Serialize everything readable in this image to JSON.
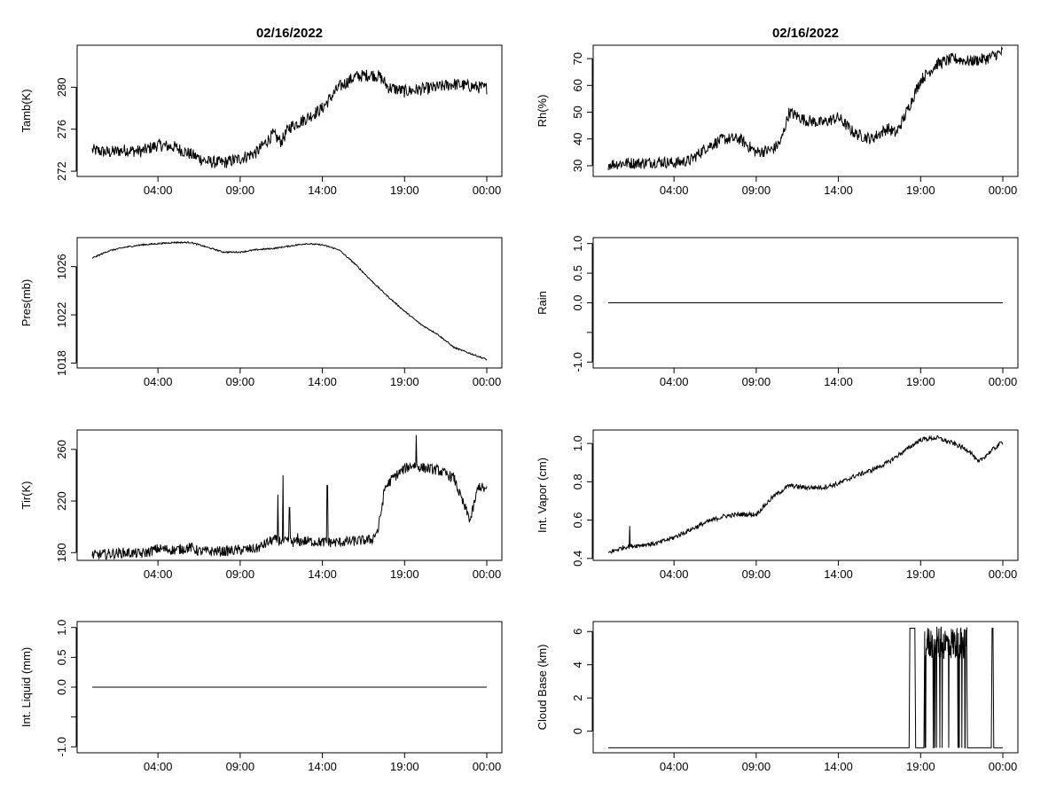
{
  "colors": {
    "background": "#ffffff",
    "line": "#000000",
    "frame": "#000000"
  },
  "chart_data": [
    {
      "id": "tamb",
      "type": "line",
      "title": "02/16/2022",
      "xlabel": "",
      "ylabel": "Tamb(K)",
      "xlim": [
        0,
        24
      ],
      "ylim": [
        271.5,
        284.0
      ],
      "xticks": [
        4,
        9,
        14,
        19,
        24
      ],
      "xtick_labels": [
        "04:00",
        "09:00",
        "14:00",
        "19:00",
        "00:00"
      ],
      "yticks": [
        272,
        276,
        280
      ],
      "ytick_labels": [
        "272",
        "276",
        "280"
      ],
      "grid": false,
      "x": [
        0,
        1,
        2,
        3,
        4,
        5,
        6,
        7,
        8,
        9,
        10,
        11,
        11.5,
        12,
        13,
        14,
        15,
        16,
        17,
        17.5,
        18,
        19,
        20,
        21,
        22,
        23,
        24
      ],
      "y": [
        274.0,
        273.8,
        274.0,
        273.9,
        274.5,
        274.3,
        273.6,
        272.9,
        272.8,
        273.2,
        273.8,
        275.5,
        274.8,
        276.2,
        277.0,
        278.0,
        280.0,
        281.0,
        281.2,
        281.0,
        280.0,
        279.6,
        279.8,
        280.0,
        280.3,
        280.1,
        279.9
      ],
      "noise": 0.6
    },
    {
      "id": "rh",
      "type": "line",
      "title": "02/16/2022",
      "xlabel": "",
      "ylabel": "Rh(%)",
      "xlim": [
        0,
        24
      ],
      "ylim": [
        26,
        75
      ],
      "xticks": [
        4,
        9,
        14,
        19,
        24
      ],
      "xtick_labels": [
        "04:00",
        "09:00",
        "14:00",
        "19:00",
        "00:00"
      ],
      "yticks": [
        30,
        40,
        50,
        60,
        70
      ],
      "ytick_labels": [
        "30",
        "40",
        "50",
        "60",
        "70"
      ],
      "grid": false,
      "x": [
        0,
        1,
        2,
        3,
        4,
        5,
        6,
        7,
        8,
        9,
        10,
        10.5,
        11,
        12,
        13,
        14,
        15,
        16,
        17,
        17.5,
        18,
        19,
        20,
        21,
        22,
        23,
        24
      ],
      "y": [
        30.5,
        31,
        31,
        31.5,
        31,
        32,
        37,
        40,
        40,
        35,
        36,
        39,
        50,
        47,
        46,
        48,
        42,
        40,
        44,
        42,
        48,
        62,
        68,
        70,
        69,
        70,
        72.5
      ],
      "noise": 2.2
    },
    {
      "id": "pres",
      "type": "line",
      "title": "",
      "xlabel": "",
      "ylabel": "Pres(mb)",
      "xlim": [
        0,
        24
      ],
      "ylim": [
        1017.6,
        1028.4
      ],
      "xticks": [
        4,
        9,
        14,
        19,
        24
      ],
      "xtick_labels": [
        "04:00",
        "09:00",
        "14:00",
        "19:00",
        "00:00"
      ],
      "yticks": [
        1018,
        1022,
        1026
      ],
      "ytick_labels": [
        "1018",
        "1022",
        "1026"
      ],
      "grid": false,
      "x": [
        0,
        1,
        2,
        3,
        4,
        5,
        6,
        7,
        8,
        9,
        10,
        11,
        12,
        13,
        14,
        15,
        16,
        17,
        18,
        19,
        20,
        21,
        22,
        23,
        24
      ],
      "y": [
        1026.7,
        1027.3,
        1027.6,
        1027.8,
        1027.9,
        1028.0,
        1028.0,
        1027.6,
        1027.2,
        1027.2,
        1027.4,
        1027.5,
        1027.7,
        1027.9,
        1027.8,
        1027.4,
        1026.2,
        1024.8,
        1023.5,
        1022.3,
        1021.2,
        1020.4,
        1019.3,
        1018.8,
        1018.3
      ],
      "noise": 0.06
    },
    {
      "id": "rain",
      "type": "line",
      "title": "",
      "xlabel": "",
      "ylabel": "Rain",
      "xlim": [
        0,
        24
      ],
      "ylim": [
        -1.1,
        1.1
      ],
      "xticks": [
        4,
        9,
        14,
        19,
        24
      ],
      "xtick_labels": [
        "04:00",
        "09:00",
        "14:00",
        "19:00",
        "00:00"
      ],
      "yticks": [
        -1.0,
        -0.5,
        0.0,
        0.5,
        1.0
      ],
      "ytick_labels": [
        "-1.0",
        "",
        "0.0",
        "0.5",
        "1.0"
      ],
      "grid": false,
      "x": [
        0,
        24
      ],
      "y": [
        0,
        0
      ],
      "noise": 0
    },
    {
      "id": "tir",
      "type": "line",
      "title": "",
      "xlabel": "",
      "ylabel": "Tir(K)",
      "xlim": [
        0,
        24
      ],
      "ylim": [
        174,
        275
      ],
      "xticks": [
        4,
        9,
        14,
        19,
        24
      ],
      "xtick_labels": [
        "04:00",
        "09:00",
        "14:00",
        "19:00",
        "00:00"
      ],
      "yticks": [
        180,
        220,
        260
      ],
      "ytick_labels": [
        "180",
        "220",
        "260"
      ],
      "grid": false,
      "x": [
        0,
        1,
        2,
        3,
        4,
        5,
        6,
        6.5,
        7,
        8,
        9,
        10,
        11,
        12,
        13,
        14,
        15,
        16,
        17,
        17.4,
        17.8,
        18.3,
        19,
        19.5,
        20,
        21,
        22,
        22.5,
        23,
        23.5,
        24
      ],
      "y": [
        178,
        179,
        180,
        179,
        183,
        182,
        184,
        181,
        181,
        181,
        182,
        183,
        190,
        188,
        189,
        188,
        188,
        189,
        190,
        198,
        230,
        238,
        245,
        248,
        246,
        244,
        238,
        220,
        205,
        232,
        228
      ],
      "noise": 4,
      "spikes": [
        [
          11.3,
          225
        ],
        [
          11.6,
          240
        ],
        [
          12,
          215
        ],
        [
          12.5,
          195
        ],
        [
          14.3,
          232
        ],
        [
          19.7,
          271
        ]
      ]
    },
    {
      "id": "vapor",
      "type": "line",
      "title": "",
      "xlabel": "",
      "ylabel": "Int. Vapor (cm)",
      "xlim": [
        0,
        24
      ],
      "ylim": [
        0.39,
        1.07
      ],
      "xticks": [
        4,
        9,
        14,
        19,
        24
      ],
      "xtick_labels": [
        "04:00",
        "09:00",
        "14:00",
        "19:00",
        "00:00"
      ],
      "yticks": [
        0.4,
        0.6,
        0.8,
        1.0
      ],
      "ytick_labels": [
        "0.4",
        "0.6",
        "0.8",
        "1.0"
      ],
      "grid": false,
      "x": [
        0,
        1,
        2,
        3,
        4,
        5,
        6,
        7,
        8,
        9,
        10,
        11,
        12,
        13,
        14,
        15,
        16,
        17,
        18,
        19,
        20,
        21,
        22,
        22.5,
        23,
        24
      ],
      "y": [
        0.43,
        0.46,
        0.47,
        0.48,
        0.51,
        0.55,
        0.59,
        0.62,
        0.63,
        0.63,
        0.72,
        0.78,
        0.77,
        0.77,
        0.79,
        0.83,
        0.86,
        0.9,
        0.96,
        1.02,
        1.03,
        1.0,
        0.96,
        0.9,
        0.94,
        1.01
      ],
      "noise": 0.012,
      "spikes": [
        [
          1.3,
          0.57
        ]
      ]
    },
    {
      "id": "liquid",
      "type": "line",
      "title": "",
      "xlabel": "",
      "ylabel": "Int. Liquid (mm)",
      "xlim": [
        0,
        24
      ],
      "ylim": [
        -1.1,
        1.1
      ],
      "xticks": [
        4,
        9,
        14,
        19,
        24
      ],
      "xtick_labels": [
        "04:00",
        "09:00",
        "14:00",
        "19:00",
        "00:00"
      ],
      "yticks": [
        -1.0,
        -0.5,
        0.0,
        0.5,
        1.0
      ],
      "ytick_labels": [
        "-1.0",
        "",
        "0.0",
        "0.5",
        "1.0"
      ],
      "grid": false,
      "x": [
        0,
        24
      ],
      "y": [
        0,
        0
      ],
      "noise": 0
    },
    {
      "id": "cloud",
      "type": "line",
      "title": "",
      "xlabel": "",
      "ylabel": "Cloud Base (km)",
      "xlim": [
        0,
        24
      ],
      "ylim": [
        -1.3,
        6.6
      ],
      "xticks": [
        4,
        9,
        14,
        19,
        24
      ],
      "xtick_labels": [
        "04:00",
        "09:00",
        "14:00",
        "19:00",
        "00:00"
      ],
      "yticks": [
        0,
        2,
        4,
        6
      ],
      "ytick_labels": [
        "0",
        "2",
        "4",
        "6"
      ],
      "grid": false,
      "x": [
        0,
        18.3,
        18.35,
        18.65,
        18.7,
        19.2,
        19.25,
        21.8,
        21.85,
        23.3,
        23.35,
        23.4,
        23.45,
        24
      ],
      "y": [
        -1,
        -1,
        6.2,
        6.2,
        -1,
        -1,
        6.0,
        6.0,
        -1,
        -1,
        6.2,
        6.2,
        -1,
        -1
      ],
      "noise": 0,
      "burst": [
        19.25,
        21.8
      ]
    }
  ]
}
